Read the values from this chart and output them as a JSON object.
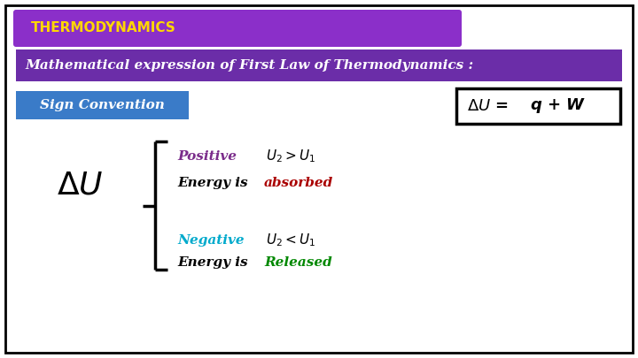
{
  "bg_color": "#ffffff",
  "border_color": "#000000",
  "title_bar_color": "#8B2FC9",
  "title_text": "THERMODYNAMICS",
  "title_text_color": "#FFD700",
  "subtitle_bar_color": "#6B2DA8",
  "subtitle_text": "Mathematical expression of First Law of Thermodynamics :",
  "subtitle_text_color": "#ffffff",
  "sign_conv_box_color": "#3A7BC8",
  "sign_conv_text": "Sign Convention",
  "sign_conv_text_color": "#ffffff",
  "formula_text_color": "#000000",
  "delta_u_color": "#000000",
  "positive_color": "#7B2D8B",
  "positive_text": "Positive",
  "absorbed_text": "absorbed",
  "absorbed_color": "#AA0000",
  "negative_color": "#00AACC",
  "negative_text": "Negative",
  "released_text": "Released",
  "released_color": "#008800"
}
